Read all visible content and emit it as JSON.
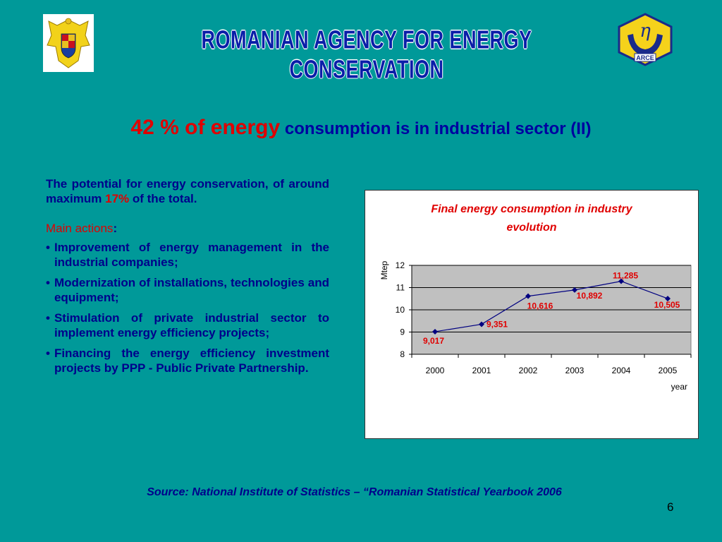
{
  "header": {
    "title": "ROMANIAN AGENCY FOR ENERGY CONSERVATION",
    "logo_text": "ARCE",
    "logo_symbol": "η"
  },
  "slide_title": {
    "highlight": "42 % of energy",
    "rest": "consumption is in industrial sector (II)"
  },
  "body": {
    "intro_pre": "The potential for energy conservation, of around maximum",
    "intro_highlight": "17%",
    "intro_post": "of the total.",
    "actions_label": "Main actions",
    "actions_colon": ":",
    "bullets": [
      "Improvement of energy management in the industrial companies;",
      "Modernization of installations, technologies and equipment;",
      "Stimulation of private industrial sector to implement energy efficiency projects;",
      "Financing the energy efficiency investment projects by PPP - Public Private  Partnership."
    ]
  },
  "chart_data": {
    "type": "line",
    "title": "Final energy consumption in industry evolution",
    "xlabel": "year",
    "ylabel": "Mtep",
    "categories": [
      "2000",
      "2001",
      "2002",
      "2003",
      "2004",
      "2005"
    ],
    "values": [
      9.017,
      9.351,
      10.616,
      10.892,
      11.285,
      10.505
    ],
    "data_labels": [
      "9,017",
      "9,351",
      "10,616",
      "10,892",
      "11,285",
      "10,505"
    ],
    "ylim": [
      8,
      12
    ],
    "yticks": [
      "8",
      "9",
      "10",
      "11",
      "12"
    ],
    "grid": true,
    "colors": {
      "line": "#000080",
      "plot_bg": "#c0c0c0",
      "labels": "#e00000",
      "title": "#e00000"
    }
  },
  "footer": {
    "source": "Source: National Institute of Statistics – “Romanian Statistical Yearbook 2006",
    "page_number": "6"
  },
  "colors": {
    "background": "#009999",
    "text": "#00008b",
    "accent": "#e00000"
  }
}
